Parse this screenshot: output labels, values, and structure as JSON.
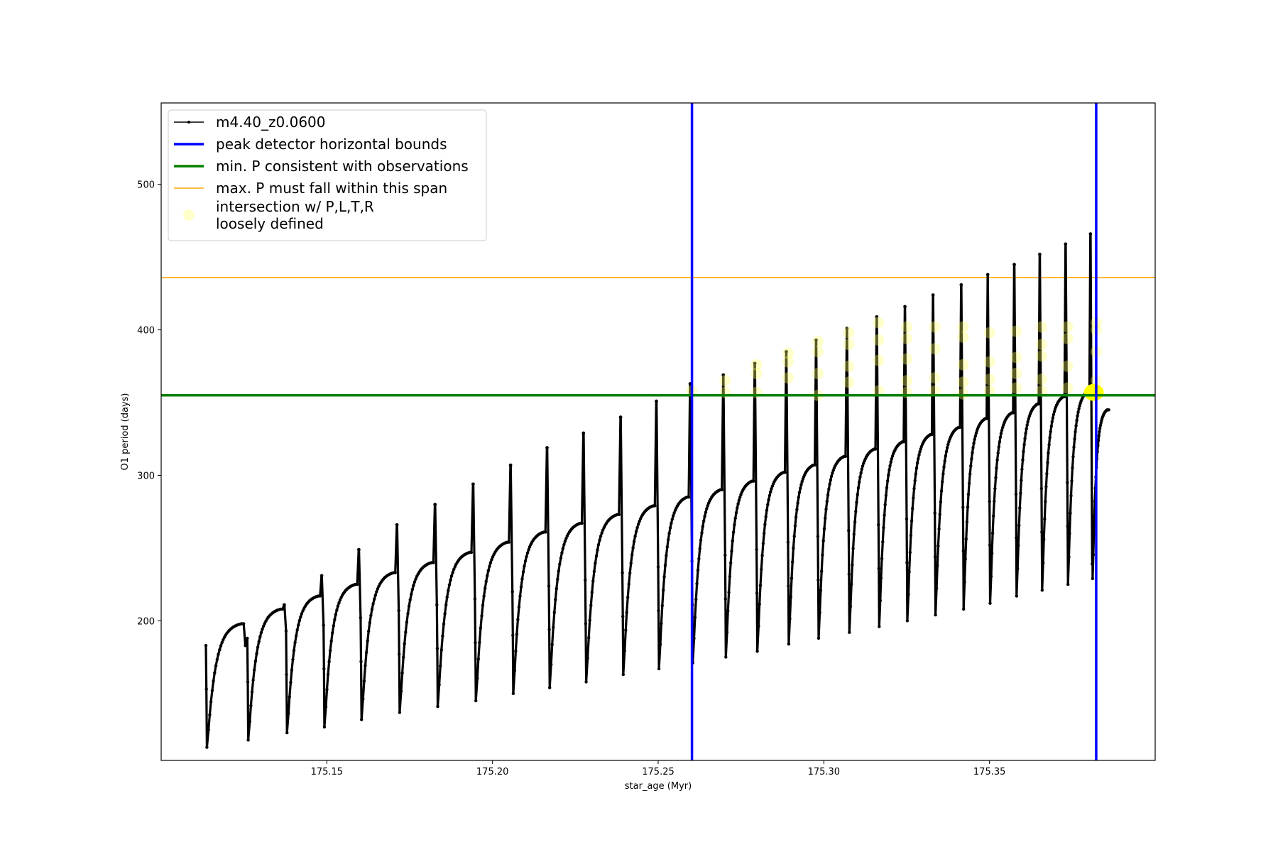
{
  "chart_data": {
    "type": "line",
    "xlabel": "star_age (Myr)",
    "ylabel": "O1 period (days)",
    "xlim": [
      175.1,
      175.4
    ],
    "ylim": [
      104,
      556
    ],
    "xticks": [
      175.15,
      175.2,
      175.25,
      175.3,
      175.35
    ],
    "xtick_labels": [
      "175.15",
      "175.20",
      "175.25",
      "175.30",
      "175.35"
    ],
    "yticks": [
      200,
      300,
      400,
      500
    ],
    "ytick_labels": [
      "200",
      "300",
      "400",
      "500"
    ],
    "grid": false,
    "legend_position": "top-left",
    "legend": [
      {
        "label": "m4.40_z0.0600",
        "kind": "line-marker",
        "color": "#000000"
      },
      {
        "label": "peak detector horizontal bounds",
        "kind": "line",
        "color": "#0000ff"
      },
      {
        "label": "min. P consistent with observations",
        "kind": "line",
        "color": "#008000"
      },
      {
        "label": "max. P must fall within this span",
        "kind": "line",
        "color": "#ffa500"
      },
      {
        "label": "intersection w/ P,L,T,R",
        "label2": "loosely defined",
        "kind": "marker",
        "color": "#ffff66"
      }
    ],
    "track": {
      "name": "m4.40_z0.0600",
      "color": "#000000",
      "pulses": [
        {
          "start": 175.1135,
          "min": 113,
          "peak": 198,
          "end": 175.1255,
          "spike": 183
        },
        {
          "start": 175.126,
          "min": 118,
          "peak": 208,
          "end": 175.1372,
          "spike": 211
        },
        {
          "start": 175.1377,
          "min": 123,
          "peak": 217,
          "end": 175.1485,
          "spike": 231
        },
        {
          "start": 175.149,
          "min": 127,
          "peak": 225,
          "end": 175.1597,
          "spike": 249
        },
        {
          "start": 175.1602,
          "min": 132,
          "peak": 233,
          "end": 175.1712,
          "spike": 266
        },
        {
          "start": 175.1717,
          "min": 137,
          "peak": 240,
          "end": 175.1827,
          "spike": 280
        },
        {
          "start": 175.1832,
          "min": 141,
          "peak": 247,
          "end": 175.1942,
          "spike": 294
        },
        {
          "start": 175.1947,
          "min": 145,
          "peak": 254,
          "end": 175.2055,
          "spike": 307
        },
        {
          "start": 175.206,
          "min": 150,
          "peak": 261,
          "end": 175.2165,
          "spike": 319
        },
        {
          "start": 175.217,
          "min": 154,
          "peak": 267,
          "end": 175.2275,
          "spike": 329
        },
        {
          "start": 175.228,
          "min": 158,
          "peak": 273,
          "end": 175.2387,
          "spike": 340
        },
        {
          "start": 175.2392,
          "min": 163,
          "peak": 279,
          "end": 175.2495,
          "spike": 351
        },
        {
          "start": 175.25,
          "min": 167,
          "peak": 285,
          "end": 175.2597,
          "spike": 363
        },
        {
          "start": 175.2602,
          "min": 171,
          "peak": 290,
          "end": 175.2697,
          "spike": 369
        },
        {
          "start": 175.2702,
          "min": 175,
          "peak": 296,
          "end": 175.2792,
          "spike": 377
        },
        {
          "start": 175.2797,
          "min": 179,
          "peak": 302,
          "end": 175.2887,
          "spike": 385
        },
        {
          "start": 175.2892,
          "min": 184,
          "peak": 307,
          "end": 175.2977,
          "spike": 393
        },
        {
          "start": 175.2982,
          "min": 188,
          "peak": 313,
          "end": 175.307,
          "spike": 401
        },
        {
          "start": 175.3075,
          "min": 192,
          "peak": 318,
          "end": 175.316,
          "spike": 409
        },
        {
          "start": 175.3165,
          "min": 196,
          "peak": 323,
          "end": 175.3245,
          "spike": 416
        },
        {
          "start": 175.325,
          "min": 200,
          "peak": 328,
          "end": 175.333,
          "spike": 424
        },
        {
          "start": 175.3335,
          "min": 204,
          "peak": 333,
          "end": 175.3415,
          "spike": 431
        },
        {
          "start": 175.342,
          "min": 208,
          "peak": 339,
          "end": 175.3495,
          "spike": 438
        },
        {
          "start": 175.35,
          "min": 212,
          "peak": 343,
          "end": 175.3575,
          "spike": 445
        },
        {
          "start": 175.358,
          "min": 217,
          "peak": 349,
          "end": 175.3652,
          "spike": 452
        },
        {
          "start": 175.3657,
          "min": 221,
          "peak": 354,
          "end": 175.373,
          "spike": 459
        },
        {
          "start": 175.3735,
          "min": 225,
          "peak": 358,
          "end": 175.3805,
          "spike": 466
        },
        {
          "start": 175.381,
          "min": 229,
          "peak": 345,
          "end": 175.386,
          "spike": null
        }
      ]
    },
    "vertical_bounds": {
      "x": [
        175.2602,
        175.3822
      ],
      "color": "#0000ff"
    },
    "min_P_line": {
      "y": 355,
      "color": "#008000"
    },
    "max_P_line": {
      "y": 436,
      "color": "#ffa500"
    },
    "intersections": {
      "color": "#ffff66",
      "points": [
        {
          "x": 175.2602,
          "y": 358
        },
        {
          "x": 175.2702,
          "y": 357
        },
        {
          "x": 175.2702,
          "y": 365
        },
        {
          "x": 175.2797,
          "y": 357
        },
        {
          "x": 175.2797,
          "y": 370
        },
        {
          "x": 175.2797,
          "y": 376
        },
        {
          "x": 175.2892,
          "y": 367
        },
        {
          "x": 175.2892,
          "y": 378
        },
        {
          "x": 175.2892,
          "y": 384
        },
        {
          "x": 175.2982,
          "y": 355
        },
        {
          "x": 175.2982,
          "y": 370
        },
        {
          "x": 175.2982,
          "y": 385
        },
        {
          "x": 175.2982,
          "y": 392
        },
        {
          "x": 175.3075,
          "y": 364
        },
        {
          "x": 175.3075,
          "y": 375
        },
        {
          "x": 175.3075,
          "y": 390
        },
        {
          "x": 175.3075,
          "y": 398
        },
        {
          "x": 175.3165,
          "y": 358
        },
        {
          "x": 175.3165,
          "y": 379
        },
        {
          "x": 175.3165,
          "y": 393
        },
        {
          "x": 175.3165,
          "y": 405
        },
        {
          "x": 175.325,
          "y": 357
        },
        {
          "x": 175.325,
          "y": 365
        },
        {
          "x": 175.325,
          "y": 380
        },
        {
          "x": 175.325,
          "y": 394
        },
        {
          "x": 175.325,
          "y": 402
        },
        {
          "x": 175.3335,
          "y": 358
        },
        {
          "x": 175.3335,
          "y": 367
        },
        {
          "x": 175.3335,
          "y": 387
        },
        {
          "x": 175.3335,
          "y": 402
        },
        {
          "x": 175.342,
          "y": 356
        },
        {
          "x": 175.342,
          "y": 364
        },
        {
          "x": 175.342,
          "y": 376
        },
        {
          "x": 175.342,
          "y": 395
        },
        {
          "x": 175.342,
          "y": 402
        },
        {
          "x": 175.35,
          "y": 358
        },
        {
          "x": 175.35,
          "y": 366
        },
        {
          "x": 175.35,
          "y": 378
        },
        {
          "x": 175.35,
          "y": 398
        },
        {
          "x": 175.358,
          "y": 360
        },
        {
          "x": 175.358,
          "y": 370
        },
        {
          "x": 175.358,
          "y": 381
        },
        {
          "x": 175.358,
          "y": 399
        },
        {
          "x": 175.3657,
          "y": 358
        },
        {
          "x": 175.3657,
          "y": 366
        },
        {
          "x": 175.3657,
          "y": 382
        },
        {
          "x": 175.3657,
          "y": 390
        },
        {
          "x": 175.3657,
          "y": 402
        },
        {
          "x": 175.3735,
          "y": 360
        },
        {
          "x": 175.3735,
          "y": 375
        },
        {
          "x": 175.3735,
          "y": 394
        },
        {
          "x": 175.3735,
          "y": 402
        },
        {
          "x": 175.3822,
          "y": 357
        },
        {
          "x": 175.3822,
          "y": 365
        },
        {
          "x": 175.3822,
          "y": 385
        },
        {
          "x": 175.3822,
          "y": 400
        },
        {
          "x": 175.3822,
          "y": 405
        }
      ],
      "highlight": {
        "x": 175.3815,
        "y": 357
      }
    }
  }
}
